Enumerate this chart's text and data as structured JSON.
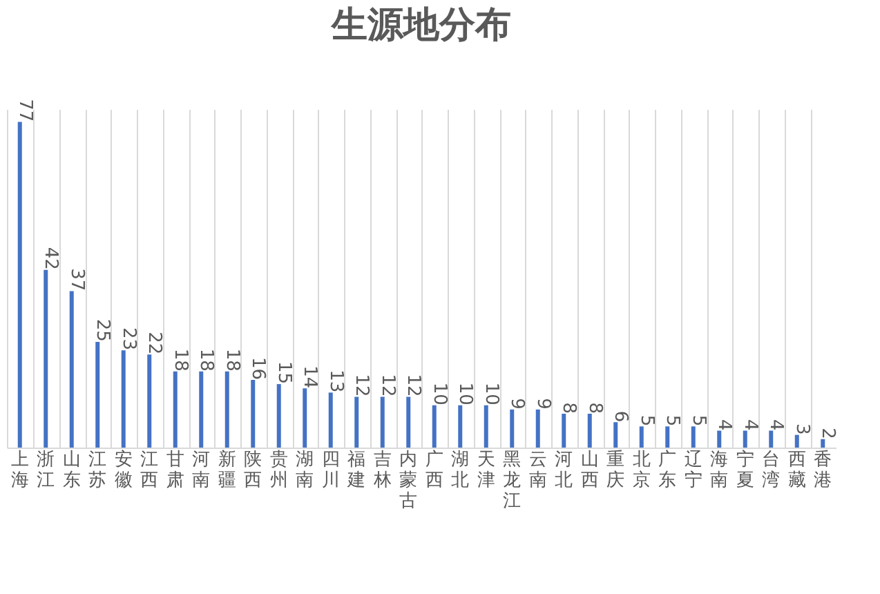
{
  "chart_data": {
    "type": "bar",
    "title": "生源地分布",
    "categories": [
      "上海",
      "浙江",
      "山东",
      "江苏",
      "安徽",
      "江西",
      "甘肃",
      "河南",
      "新疆",
      "陕西",
      "贵州",
      "湖南",
      "四川",
      "福建",
      "吉林",
      "内蒙古",
      "广西",
      "湖北",
      "天津",
      "黑龙江",
      "云南",
      "河北",
      "山西",
      "重庆",
      "北京",
      "广东",
      "辽宁",
      "海南",
      "宁夏",
      "台湾",
      "西藏",
      "香港"
    ],
    "values": [
      77,
      42,
      37,
      25,
      23,
      22,
      18,
      18,
      18,
      16,
      15,
      14,
      13,
      12,
      12,
      12,
      10,
      10,
      10,
      9,
      9,
      8,
      8,
      6,
      5,
      5,
      5,
      4,
      4,
      4,
      3,
      2
    ],
    "color": "#4472c4",
    "data_labels": true,
    "grid": "x",
    "tick_labels": "x"
  }
}
